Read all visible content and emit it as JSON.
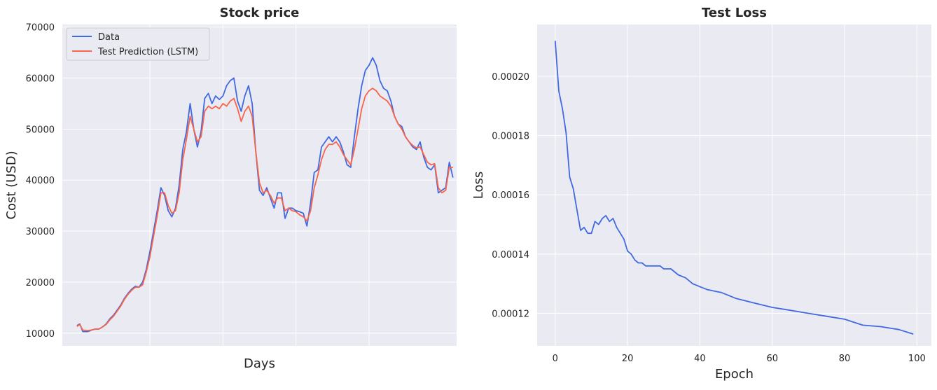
{
  "chart_data": [
    {
      "type": "line",
      "title": "Stock price",
      "xlabel": "Days",
      "ylabel": "Cost (USD)",
      "ylim": [
        7500,
        70500
      ],
      "yticks": [
        10000,
        20000,
        30000,
        40000,
        50000,
        60000,
        70000
      ],
      "ytick_labels": [
        "10000",
        "20000",
        "30000",
        "40000",
        "50000",
        "60000",
        "70000"
      ],
      "xlim": [
        -20,
        520
      ],
      "grid": true,
      "legend": "top-left",
      "colors": {
        "Data": "#4169e1",
        "Test Prediction (LSTM)": "#fa6449"
      },
      "series": [
        {
          "name": "Data",
          "x": [
            0,
            4,
            8,
            15,
            20,
            25,
            30,
            35,
            40,
            45,
            50,
            55,
            60,
            65,
            70,
            75,
            80,
            85,
            90,
            95,
            100,
            105,
            110,
            115,
            120,
            125,
            130,
            135,
            140,
            145,
            150,
            155,
            160,
            165,
            170,
            175,
            180,
            185,
            190,
            195,
            200,
            205,
            210,
            215,
            220,
            225,
            230,
            235,
            240,
            245,
            250,
            255,
            260,
            265,
            270,
            275,
            280,
            285,
            290,
            295,
            300,
            305,
            310,
            315,
            320,
            325,
            330,
            335,
            340,
            345,
            350,
            355,
            360,
            365,
            370,
            375,
            380,
            385,
            390,
            395,
            400,
            405,
            410,
            415,
            420,
            425,
            430,
            435,
            440,
            445,
            450,
            455,
            460,
            465,
            470,
            475,
            480,
            485,
            490,
            495,
            500,
            505,
            510,
            515
          ],
          "y": [
            11500,
            11800,
            10300,
            10300,
            10600,
            10800,
            10800,
            11200,
            11800,
            12800,
            13500,
            14500,
            15500,
            16800,
            17800,
            18600,
            19200,
            19000,
            20000,
            22500,
            26000,
            30000,
            34000,
            38500,
            37000,
            34000,
            32800,
            34500,
            39000,
            46000,
            49500,
            55000,
            50000,
            46500,
            49500,
            56000,
            57000,
            55000,
            56500,
            55800,
            56500,
            58500,
            59500,
            60000,
            55500,
            53500,
            56500,
            58500,
            55000,
            45500,
            38000,
            37000,
            38500,
            36500,
            34500,
            37500,
            37500,
            32500,
            34500,
            34500,
            34000,
            33800,
            33500,
            31000,
            35500,
            41500,
            42000,
            46500,
            47500,
            48500,
            47500,
            48500,
            47500,
            45500,
            43000,
            42500,
            48500,
            54000,
            58500,
            61500,
            62500,
            64000,
            62500,
            59500,
            58000,
            57500,
            55500,
            52500,
            51000,
            50500,
            48500,
            47500,
            46500,
            46000,
            47500,
            44500,
            42500,
            42000,
            43000,
            37500,
            38000,
            38500,
            43500,
            40500
          ]
        },
        {
          "name": "Test Prediction (LSTM)",
          "x": [
            0,
            4,
            8,
            15,
            20,
            25,
            30,
            35,
            40,
            45,
            50,
            55,
            60,
            65,
            70,
            75,
            80,
            85,
            90,
            95,
            100,
            105,
            110,
            115,
            120,
            125,
            130,
            135,
            140,
            145,
            150,
            155,
            160,
            165,
            170,
            175,
            180,
            185,
            190,
            195,
            200,
            205,
            210,
            215,
            220,
            225,
            230,
            235,
            240,
            245,
            250,
            255,
            260,
            265,
            270,
            275,
            280,
            285,
            290,
            295,
            300,
            305,
            310,
            315,
            320,
            325,
            330,
            335,
            340,
            345,
            350,
            355,
            360,
            365,
            370,
            375,
            380,
            385,
            390,
            395,
            400,
            405,
            410,
            415,
            420,
            425,
            430,
            435,
            440,
            445,
            450,
            455,
            460,
            465,
            470,
            475,
            480,
            485,
            490,
            495,
            500,
            505,
            510,
            515
          ],
          "y": [
            11300,
            11700,
            10600,
            10500,
            10600,
            10800,
            10800,
            11200,
            11700,
            12600,
            13300,
            14300,
            15300,
            16600,
            17600,
            18400,
            19000,
            19000,
            19500,
            22000,
            25000,
            29000,
            33000,
            37500,
            37500,
            35000,
            33500,
            34000,
            37500,
            44000,
            48000,
            52500,
            50000,
            47500,
            48500,
            53500,
            54500,
            54000,
            54500,
            54000,
            55000,
            54500,
            55500,
            56000,
            54000,
            51500,
            53500,
            54500,
            52500,
            45500,
            39500,
            37500,
            38000,
            37000,
            35500,
            36500,
            36500,
            34000,
            34500,
            34000,
            33800,
            33200,
            32800,
            32000,
            34000,
            38500,
            41000,
            44000,
            46000,
            47000,
            47000,
            47500,
            46500,
            45000,
            44000,
            43000,
            46000,
            50000,
            54000,
            56500,
            57500,
            58000,
            57500,
            56500,
            56000,
            55500,
            54500,
            52500,
            51000,
            50000,
            48500,
            47500,
            46800,
            46300,
            46500,
            45000,
            43500,
            43000,
            43200,
            38500,
            37500,
            38000,
            42500,
            42500
          ]
        }
      ]
    },
    {
      "type": "line",
      "title": "Test Loss",
      "xlabel": "Epoch",
      "ylabel": "Loss",
      "xlim": [
        -5,
        104
      ],
      "ylim": [
        0.000109,
        0.0002175
      ],
      "xticks": [
        0,
        20,
        40,
        60,
        80,
        100
      ],
      "xtick_labels": [
        "0",
        "20",
        "40",
        "60",
        "80",
        "100"
      ],
      "yticks": [
        0.00012,
        0.00014,
        0.00016,
        0.00018,
        0.0002
      ],
      "ytick_labels": [
        "0.00012",
        "0.00014",
        "0.00016",
        "0.00018",
        "0.00020"
      ],
      "grid": true,
      "colors": {
        "Loss": "#4169e1"
      },
      "series": [
        {
          "x": [
            0,
            1,
            2,
            3,
            4,
            5,
            6,
            7,
            8,
            9,
            10,
            11,
            12,
            13,
            14,
            15,
            16,
            17,
            18,
            19,
            20,
            21,
            22,
            23,
            24,
            25,
            26,
            27,
            28,
            29,
            30,
            32,
            34,
            36,
            38,
            40,
            42,
            44,
            46,
            48,
            50,
            55,
            60,
            65,
            70,
            75,
            80,
            85,
            90,
            95,
            99
          ],
          "y": [
            0.000212,
            0.000195,
            0.000189,
            0.000181,
            0.000166,
            0.000162,
            0.000155,
            0.000148,
            0.000149,
            0.000147,
            0.000147,
            0.000151,
            0.00015,
            0.000152,
            0.000153,
            0.000151,
            0.000152,
            0.000149,
            0.000147,
            0.000145,
            0.000141,
            0.00014,
            0.000138,
            0.000137,
            0.000137,
            0.000136,
            0.000136,
            0.000136,
            0.000136,
            0.000136,
            0.000135,
            0.000135,
            0.000133,
            0.000132,
            0.00013,
            0.000129,
            0.000128,
            0.0001275,
            0.000127,
            0.000126,
            0.000125,
            0.0001235,
            0.000122,
            0.000121,
            0.00012,
            0.000119,
            0.000118,
            0.000116,
            0.0001155,
            0.0001145,
            0.000113
          ]
        }
      ]
    }
  ]
}
